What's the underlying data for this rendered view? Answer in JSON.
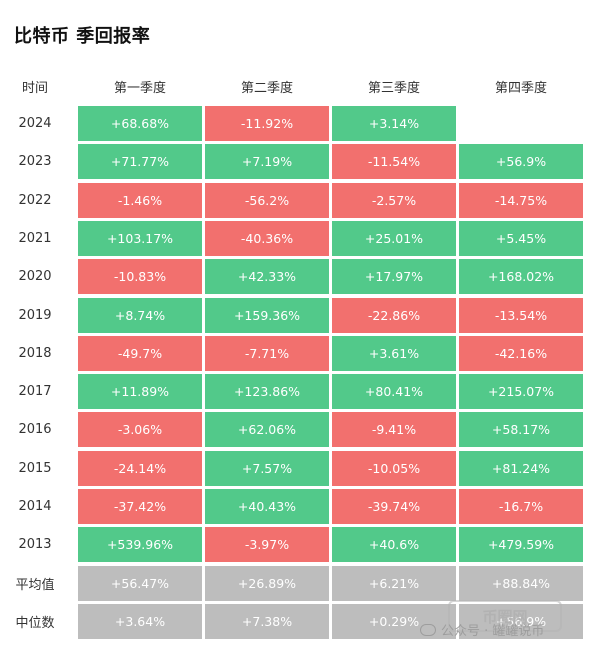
{
  "title": "比特币 季回报率",
  "chart_data": {
    "type": "table",
    "title": "比特币 季回报率",
    "corner_label": "时间",
    "columns": [
      "第一季度",
      "第二季度",
      "第三季度",
      "第四季度"
    ],
    "rows": [
      {
        "label": "2024",
        "values": [
          "+68.68%",
          "-11.92%",
          "+3.14%",
          ""
        ]
      },
      {
        "label": "2023",
        "values": [
          "+71.77%",
          "+7.19%",
          "-11.54%",
          "+56.9%"
        ]
      },
      {
        "label": "2022",
        "values": [
          "-1.46%",
          "-56.2%",
          "-2.57%",
          "-14.75%"
        ]
      },
      {
        "label": "2021",
        "values": [
          "+103.17%",
          "-40.36%",
          "+25.01%",
          "+5.45%"
        ]
      },
      {
        "label": "2020",
        "values": [
          "-10.83%",
          "+42.33%",
          "+17.97%",
          "+168.02%"
        ]
      },
      {
        "label": "2019",
        "values": [
          "+8.74%",
          "+159.36%",
          "-22.86%",
          "-13.54%"
        ]
      },
      {
        "label": "2018",
        "values": [
          "-49.7%",
          "-7.71%",
          "+3.61%",
          "-42.16%"
        ]
      },
      {
        "label": "2017",
        "values": [
          "+11.89%",
          "+123.86%",
          "+80.41%",
          "+215.07%"
        ]
      },
      {
        "label": "2016",
        "values": [
          "-3.06%",
          "+62.06%",
          "-9.41%",
          "+58.17%"
        ]
      },
      {
        "label": "2015",
        "values": [
          "-24.14%",
          "+7.57%",
          "-10.05%",
          "+81.24%"
        ]
      },
      {
        "label": "2014",
        "values": [
          "-37.42%",
          "+40.43%",
          "-39.74%",
          "-16.7%"
        ]
      },
      {
        "label": "2013",
        "values": [
          "+539.96%",
          "-3.97%",
          "+40.6%",
          "+479.59%"
        ]
      }
    ],
    "summary_rows": [
      {
        "label": "平均值",
        "values": [
          "+56.47%",
          "+26.89%",
          "+6.21%",
          "+88.84%"
        ]
      },
      {
        "label": "中位数",
        "values": [
          "+3.64%",
          "+7.38%",
          "+0.29%",
          "+56.9%"
        ]
      }
    ],
    "colors": {
      "positive": "#52c98a",
      "negative": "#f2706e",
      "summary": "#bdbdbd"
    }
  },
  "watermark": {
    "text": "公众号 · 罐罐说币",
    "logo_text": "币圈网"
  }
}
